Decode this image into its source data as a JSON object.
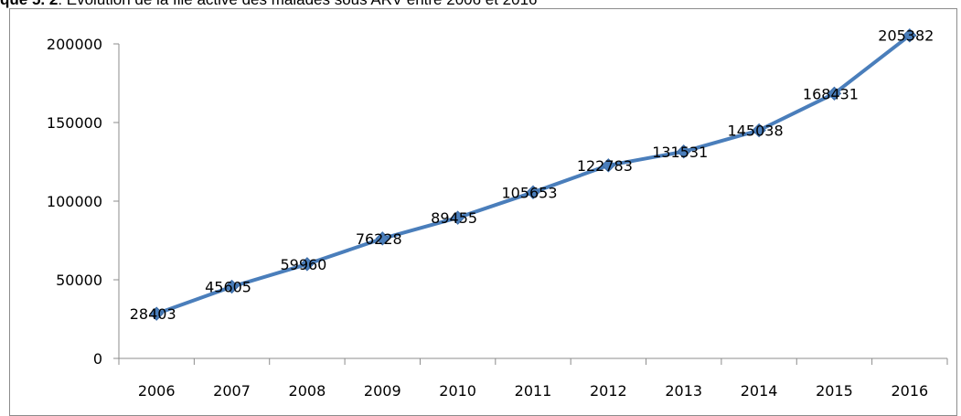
{
  "caption": {
    "prefix": "que 5. 2",
    "text": ": Évolution de la file active des malades sous ARV entre 2006 et 2016"
  },
  "chart_data": {
    "type": "line",
    "categories": [
      "2006",
      "2007",
      "2008",
      "2009",
      "2010",
      "2011",
      "2012",
      "2013",
      "2014",
      "2015",
      "2016"
    ],
    "series": [
      {
        "values": [
          28403,
          45605,
          59960,
          76228,
          89455,
          105653,
          122783,
          131531,
          145038,
          168431,
          205382
        ]
      }
    ],
    "ylim": [
      0,
      200000
    ],
    "yticks": [
      0,
      50000,
      100000,
      150000,
      200000
    ],
    "grid": false,
    "legend": "none",
    "marker": "diamond",
    "colors": {
      "line": "#4a7ebb",
      "marker": "#4a7ebb",
      "axis": "#8c8c8c"
    }
  }
}
